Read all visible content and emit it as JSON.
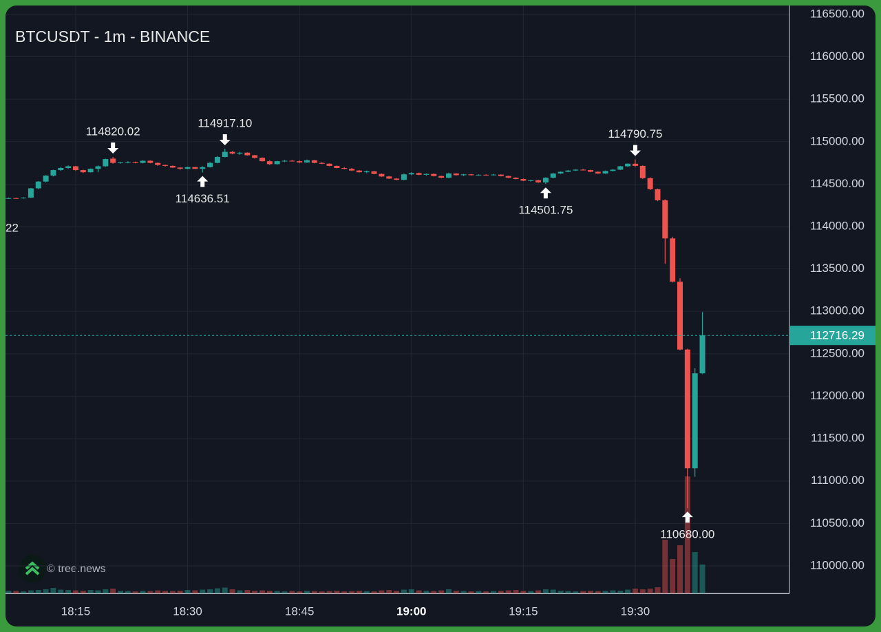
{
  "chart_data": {
    "type": "candlestick",
    "title": "BTCUSDT - 1m - BINANCE",
    "categories": [
      null,
      null,
      null,
      null,
      null,
      null,
      null,
      null,
      null,
      "18:15",
      null,
      null,
      null,
      null,
      null,
      null,
      null,
      null,
      null,
      null,
      null,
      null,
      null,
      null,
      "18:30",
      null,
      null,
      null,
      null,
      null,
      null,
      null,
      null,
      null,
      null,
      null,
      null,
      null,
      null,
      "18:45",
      null,
      null,
      null,
      null,
      null,
      null,
      null,
      null,
      null,
      null,
      null,
      null,
      null,
      null,
      "19:00",
      null,
      null,
      null,
      null,
      null,
      null,
      null,
      null,
      null,
      null,
      null,
      null,
      null,
      null,
      "19:15",
      null,
      null,
      null,
      null,
      null,
      null,
      null,
      null,
      null,
      null,
      null,
      null,
      null,
      null,
      "19:30",
      null,
      null,
      null,
      null,
      null,
      null,
      null,
      null,
      null
    ],
    "open": [
      114330,
      114335,
      114332,
      114340,
      114450,
      114530,
      114600,
      114665,
      114690,
      114710,
      114665,
      114640,
      114680,
      114710,
      114800,
      114750,
      114755,
      114760,
      114750,
      114775,
      114750,
      114725,
      114715,
      114695,
      114680,
      114700,
      114680,
      114700,
      114750,
      114820,
      114880,
      114860,
      114870,
      114840,
      114810,
      114770,
      114735,
      114770,
      114775,
      114770,
      114755,
      114780,
      114750,
      114740,
      114715,
      114690,
      114680,
      114660,
      114640,
      114650,
      114620,
      114590,
      114565,
      114550,
      114615,
      114630,
      114610,
      114620,
      114595,
      114575,
      114625,
      114605,
      114615,
      114605,
      114610,
      114608,
      114612,
      114595,
      114575,
      114560,
      114540,
      114545,
      114520,
      114575,
      114625,
      114645,
      114660,
      114670,
      114665,
      114645,
      114625,
      114655,
      114670,
      114710,
      114740,
      114715,
      114570,
      114440,
      114310,
      113860,
      113350,
      112550,
      111150,
      112270
    ],
    "high": [
      114340,
      114340,
      114345,
      114455,
      114535,
      114605,
      114670,
      114700,
      114720,
      114715,
      114670,
      114685,
      114720,
      114800,
      114820.02,
      114760,
      114770,
      114765,
      114780,
      114780,
      114755,
      114730,
      114720,
      114700,
      114705,
      114705,
      114710,
      114760,
      114830,
      114917.1,
      114890,
      114880,
      114875,
      114845,
      114815,
      114780,
      114775,
      114785,
      114785,
      114780,
      114790,
      114785,
      114760,
      114745,
      114720,
      114700,
      114690,
      114665,
      114660,
      114655,
      114625,
      114595,
      114570,
      114625,
      114640,
      114635,
      114625,
      114625,
      114600,
      114635,
      114630,
      114620,
      114620,
      114615,
      114615,
      114620,
      114615,
      114600,
      114580,
      114565,
      114550,
      114550,
      114580,
      114630,
      114650,
      114665,
      114675,
      114680,
      114670,
      114650,
      114660,
      114675,
      114715,
      114745,
      114790.75,
      114720,
      114580,
      114445,
      114320,
      113880,
      113390,
      112560,
      112330,
      112990
    ],
    "low": [
      114325,
      114328,
      114328,
      114335,
      114440,
      114520,
      114590,
      114655,
      114680,
      114655,
      114630,
      114635,
      114640,
      114705,
      114740,
      114740,
      114745,
      114745,
      114745,
      114745,
      114715,
      114705,
      114690,
      114670,
      114675,
      114675,
      114636.51,
      114695,
      114745,
      114815,
      114850,
      114845,
      114835,
      114800,
      114765,
      114725,
      114730,
      114760,
      114765,
      114750,
      114750,
      114745,
      114735,
      114710,
      114685,
      114675,
      114655,
      114635,
      114630,
      114615,
      114585,
      114560,
      114545,
      114545,
      114605,
      114605,
      114600,
      114590,
      114570,
      114570,
      114600,
      114595,
      114600,
      114598,
      114600,
      114600,
      114590,
      114570,
      114555,
      114535,
      114530,
      114515,
      114501.75,
      114570,
      114620,
      114640,
      114655,
      114660,
      114640,
      114620,
      114620,
      114650,
      114665,
      114700,
      114705,
      114560,
      114430,
      114300,
      113560,
      113340,
      112540,
      110680,
      111050,
      112260
    ],
    "close": [
      114335,
      114332,
      114340,
      114450,
      114530,
      114600,
      114665,
      114690,
      114710,
      114665,
      114640,
      114680,
      114710,
      114795,
      114750,
      114755,
      114760,
      114750,
      114775,
      114750,
      114725,
      114715,
      114695,
      114680,
      114700,
      114680,
      114700,
      114750,
      114820,
      114880,
      114860,
      114870,
      114840,
      114810,
      114770,
      114735,
      114770,
      114775,
      114770,
      114755,
      114780,
      114750,
      114740,
      114715,
      114690,
      114680,
      114660,
      114640,
      114650,
      114620,
      114590,
      114565,
      114550,
      114615,
      114630,
      114610,
      114620,
      114595,
      114575,
      114625,
      114605,
      114615,
      114605,
      114610,
      114608,
      114612,
      114595,
      114575,
      114560,
      114540,
      114545,
      114520,
      114575,
      114625,
      114645,
      114660,
      114670,
      114665,
      114645,
      114625,
      114655,
      114670,
      114710,
      114740,
      114715,
      114570,
      114440,
      114310,
      113860,
      113350,
      112550,
      111150,
      112270,
      112716.29
    ],
    "volume": [
      40,
      35,
      30,
      45,
      50,
      60,
      80,
      55,
      50,
      45,
      40,
      50,
      45,
      60,
      70,
      40,
      35,
      30,
      40,
      35,
      45,
      40,
      35,
      40,
      50,
      45,
      55,
      60,
      75,
      85,
      60,
      45,
      50,
      40,
      45,
      40,
      35,
      30,
      35,
      30,
      40,
      35,
      30,
      35,
      40,
      30,
      35,
      40,
      35,
      30,
      45,
      50,
      40,
      55,
      60,
      45,
      40,
      35,
      45,
      60,
      40,
      35,
      30,
      35,
      30,
      35,
      40,
      45,
      50,
      40,
      35,
      45,
      60,
      55,
      40,
      35,
      30,
      35,
      40,
      35,
      40,
      45,
      40,
      55,
      70,
      60,
      70,
      90,
      780,
      500,
      700,
      1700,
      600,
      420
    ],
    "high_labels": [
      null,
      null,
      null,
      null,
      null,
      null,
      null,
      null,
      null,
      null,
      null,
      null,
      null,
      null,
      "114820.02",
      null,
      null,
      null,
      null,
      null,
      null,
      null,
      null,
      null,
      null,
      null,
      null,
      null,
      null,
      "114917.10",
      null,
      null,
      null,
      null,
      null,
      null,
      null,
      null,
      null,
      null,
      null,
      null,
      null,
      null,
      null,
      null,
      null,
      null,
      null,
      null,
      null,
      null,
      null,
      null,
      null,
      null,
      null,
      null,
      null,
      null,
      null,
      null,
      null,
      null,
      null,
      null,
      null,
      null,
      null,
      null,
      null,
      null,
      null,
      null,
      null,
      null,
      null,
      null,
      null,
      null,
      null,
      null,
      null,
      null,
      "114790.75",
      null,
      null,
      null,
      null,
      null,
      null,
      null,
      null,
      null
    ],
    "low_labels": [
      null,
      null,
      null,
      null,
      null,
      null,
      null,
      null,
      null,
      null,
      null,
      null,
      null,
      null,
      null,
      null,
      null,
      null,
      null,
      null,
      null,
      null,
      null,
      null,
      null,
      null,
      "114636.51",
      null,
      null,
      null,
      null,
      null,
      null,
      null,
      null,
      null,
      null,
      null,
      null,
      null,
      null,
      null,
      null,
      null,
      null,
      null,
      null,
      null,
      null,
      null,
      null,
      null,
      null,
      null,
      null,
      null,
      null,
      null,
      null,
      null,
      null,
      null,
      null,
      null,
      null,
      null,
      null,
      null,
      null,
      null,
      null,
      null,
      "114501.75",
      null,
      null,
      null,
      null,
      null,
      null,
      null,
      null,
      null,
      null,
      null,
      null,
      null,
      null,
      null,
      null,
      null,
      null,
      "110680.00",
      null,
      null
    ],
    "up_color": "#26a69a",
    "down_color": "#ef5350",
    "ylim": [
      109675,
      116605
    ],
    "yticks": [
      {
        "value": 110000,
        "label": "110000.00"
      },
      {
        "value": 110500,
        "label": "110500.00"
      },
      {
        "value": 111000,
        "label": "111000.00"
      },
      {
        "value": 111500,
        "label": "111500.00"
      },
      {
        "value": 112000,
        "label": "112000.00"
      },
      {
        "value": 112500,
        "label": "112500.00"
      },
      {
        "value": 113000,
        "label": "113000.00"
      },
      {
        "value": 113500,
        "label": "113500.00"
      },
      {
        "value": 114000,
        "label": "114000.00"
      },
      {
        "value": 114500,
        "label": "114500.00"
      },
      {
        "value": 115000,
        "label": "115000.00"
      },
      {
        "value": 115500,
        "label": "115500.00"
      },
      {
        "value": 116000,
        "label": "116000.00"
      },
      {
        "value": 116500,
        "label": "116500.00"
      }
    ],
    "grid": true,
    "last_price_line": true,
    "cropped_label": "22"
  },
  "watermark": "© tree.news"
}
